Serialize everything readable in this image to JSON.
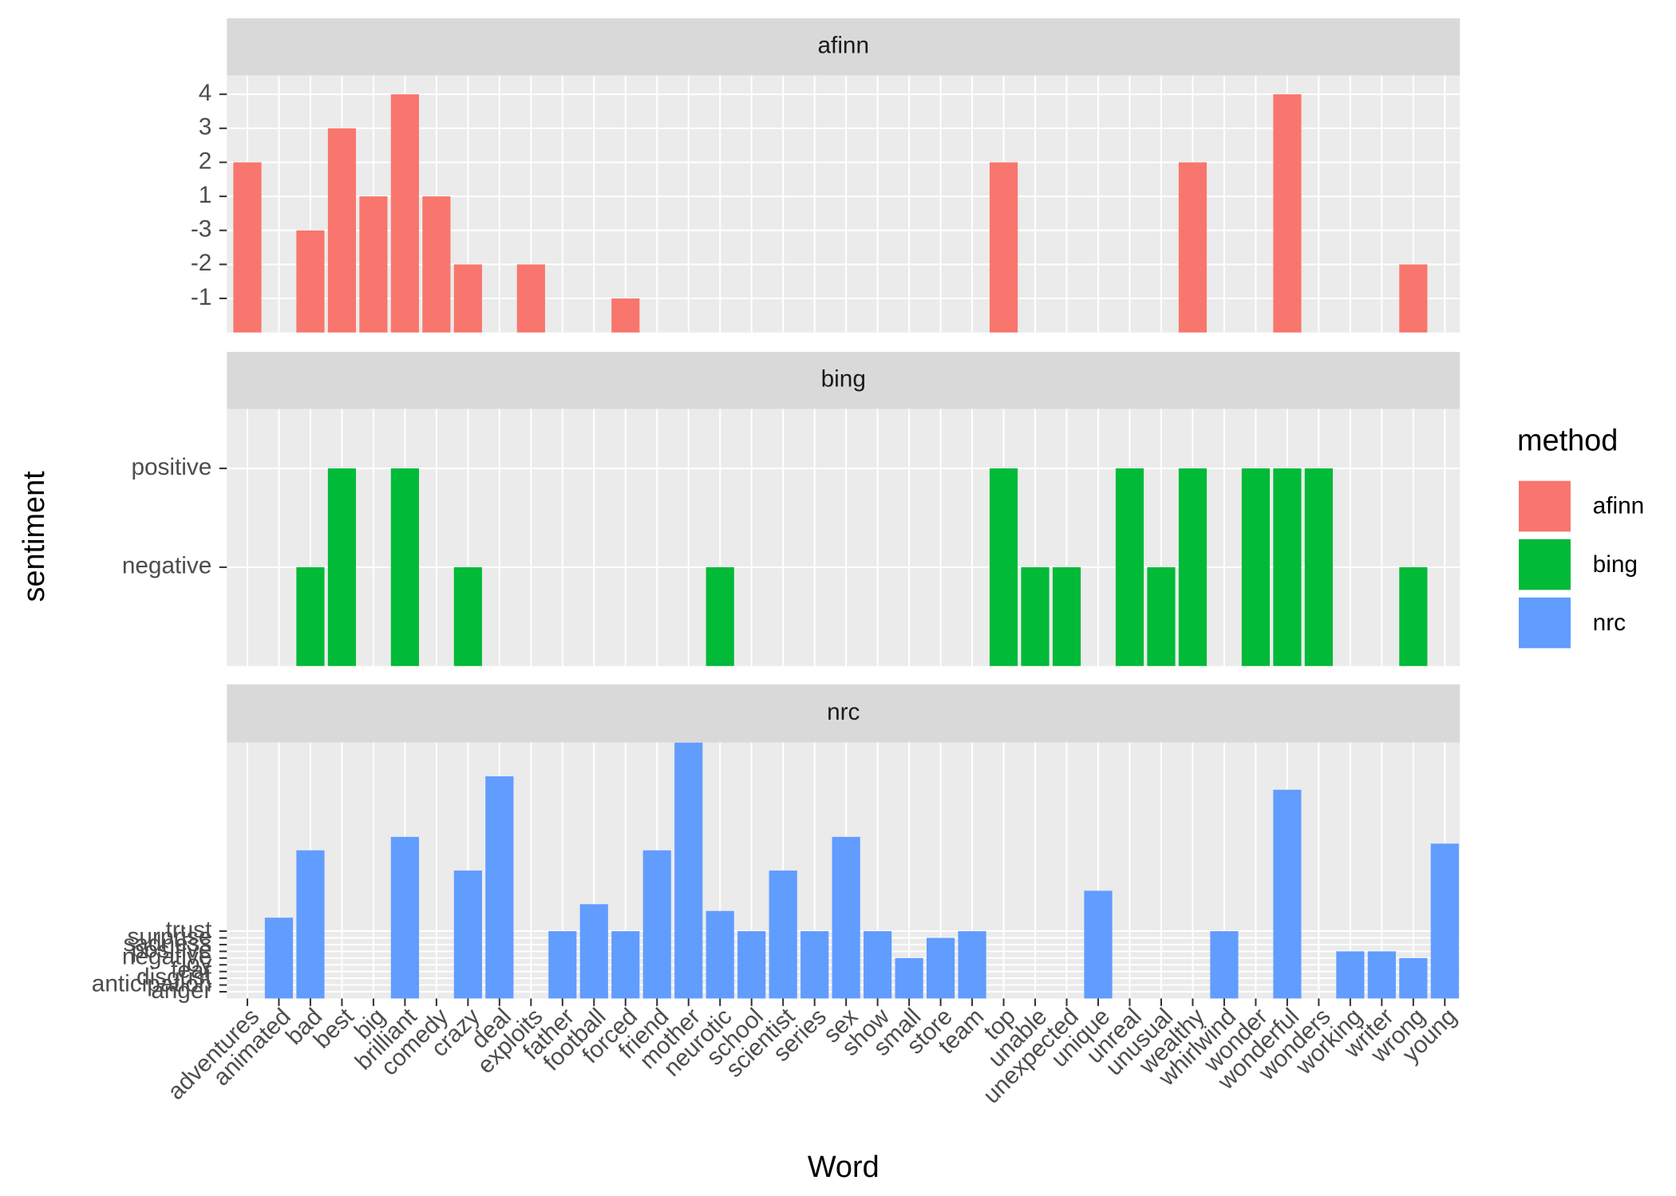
{
  "chart_data": {
    "type": "bar",
    "x_label": "Word",
    "y_label": "sentiment",
    "legend_title": "method",
    "categories": [
      "adventures",
      "animated",
      "bad",
      "best",
      "big",
      "brilliant",
      "comedy",
      "crazy",
      "deal",
      "exploits",
      "father",
      "football",
      "forced",
      "friend",
      "mother",
      "neurotic",
      "school",
      "scientist",
      "series",
      "sex",
      "show",
      "small",
      "store",
      "team",
      "top",
      "unable",
      "unexpected",
      "unique",
      "unreal",
      "unusual",
      "wealthy",
      "whirlwind",
      "wonder",
      "wonderful",
      "wonders",
      "working",
      "writer",
      "wrong",
      "young"
    ],
    "series": [
      {
        "name": "afinn",
        "color": "#f8766d",
        "values": [
          5,
          null,
          3,
          6,
          4,
          7,
          4,
          2,
          null,
          2,
          null,
          null,
          1,
          null,
          null,
          null,
          null,
          null,
          null,
          null,
          null,
          null,
          null,
          null,
          5,
          null,
          null,
          null,
          null,
          null,
          5,
          null,
          null,
          7,
          null,
          null,
          null,
          2,
          null
        ],
        "ylim": [
          0,
          7.55
        ],
        "yticks": [
          {
            "value": 1,
            "label": "-1"
          },
          {
            "value": 2,
            "label": "-2"
          },
          {
            "value": 3,
            "label": "-3"
          },
          {
            "value": 4,
            "label": "1"
          },
          {
            "value": 5,
            "label": "2"
          },
          {
            "value": 6,
            "label": "3"
          },
          {
            "value": 7,
            "label": "4"
          }
        ]
      },
      {
        "name": "bing",
        "color": "#00ba38",
        "values": [
          null,
          null,
          1,
          2,
          null,
          2,
          null,
          1,
          null,
          null,
          null,
          null,
          null,
          null,
          null,
          1,
          null,
          null,
          null,
          null,
          null,
          null,
          null,
          null,
          2,
          1,
          1,
          null,
          2,
          1,
          2,
          null,
          2,
          2,
          2,
          null,
          null,
          1,
          null
        ],
        "ylim": [
          0,
          2.6
        ],
        "yticks": [
          {
            "value": 1,
            "label": "negative"
          },
          {
            "value": 2,
            "label": "positive"
          }
        ]
      },
      {
        "name": "nrc",
        "color": "#619cff",
        "values": [
          null,
          12,
          22,
          null,
          null,
          24,
          null,
          19,
          33,
          null,
          10,
          14,
          10,
          22,
          38,
          13,
          10,
          19,
          10,
          24,
          10,
          6,
          9,
          10,
          null,
          null,
          null,
          16,
          null,
          null,
          null,
          10,
          null,
          31,
          null,
          7,
          7,
          6,
          23
        ],
        "ylim": [
          0,
          38
        ],
        "yticks": [
          {
            "value": 1,
            "label": "anger"
          },
          {
            "value": 2,
            "label": "anticipation"
          },
          {
            "value": 3,
            "label": "disgust"
          },
          {
            "value": 4,
            "label": "fear"
          },
          {
            "value": 5,
            "label": "joy"
          },
          {
            "value": 6,
            "label": "negative"
          },
          {
            "value": 7,
            "label": "positive"
          },
          {
            "value": 8,
            "label": "sadness"
          },
          {
            "value": 9,
            "label": "surprise"
          },
          {
            "value": 10,
            "label": "trust"
          }
        ]
      }
    ]
  }
}
